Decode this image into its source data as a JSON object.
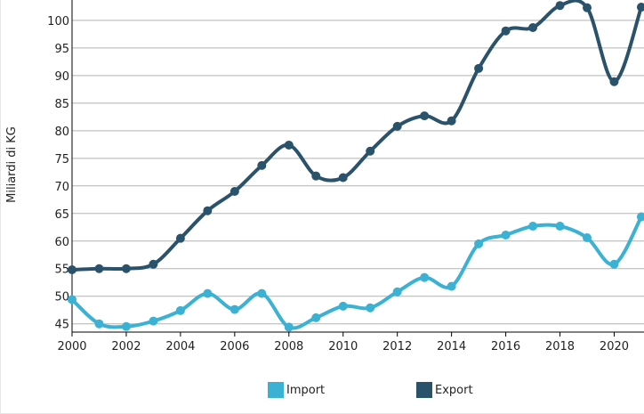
{
  "chart_data": {
    "type": "line",
    "title": "",
    "xlabel": "",
    "ylabel": "Miliardi di KG",
    "xlim": [
      2000,
      21.1
    ],
    "ylim": [
      43.5,
      103.7
    ],
    "x": [
      2000,
      2001,
      2002,
      2003,
      2004,
      2005,
      2006,
      2007,
      2008,
      2009,
      2010,
      2011,
      2012,
      2013,
      2014,
      2015,
      2016,
      2017,
      2018,
      2019,
      2020,
      2021
    ],
    "x_ticks": [
      "2000",
      "2002",
      "2004",
      "2006",
      "2008",
      "2010",
      "2012",
      "2014",
      "2016",
      "2018",
      "2020"
    ],
    "y_ticks": [
      "45",
      "50",
      "55",
      "60",
      "65",
      "70",
      "75",
      "80",
      "85",
      "90",
      "95",
      "100"
    ],
    "grid": true,
    "legend_position": "bottom",
    "series": [
      {
        "name": "Import",
        "color": "#3bb1d3",
        "values": [
          49.4,
          45.0,
          44.5,
          45.5,
          47.4,
          50.5,
          47.6,
          50.5,
          44.4,
          46.1,
          48.2,
          47.9,
          50.8,
          53.4,
          51.8,
          59.5,
          61.1,
          62.7,
          62.7,
          60.6,
          55.8,
          64.4
        ]
      },
      {
        "name": "Export",
        "color": "#2b526b",
        "values": [
          54.8,
          55.0,
          55.0,
          55.8,
          60.5,
          65.5,
          69.0,
          73.7,
          77.4,
          71.8,
          71.5,
          76.3,
          80.8,
          82.7,
          81.8,
          91.3,
          98.1,
          98.7,
          102.7,
          102.3,
          88.9,
          102.4
        ]
      }
    ]
  }
}
